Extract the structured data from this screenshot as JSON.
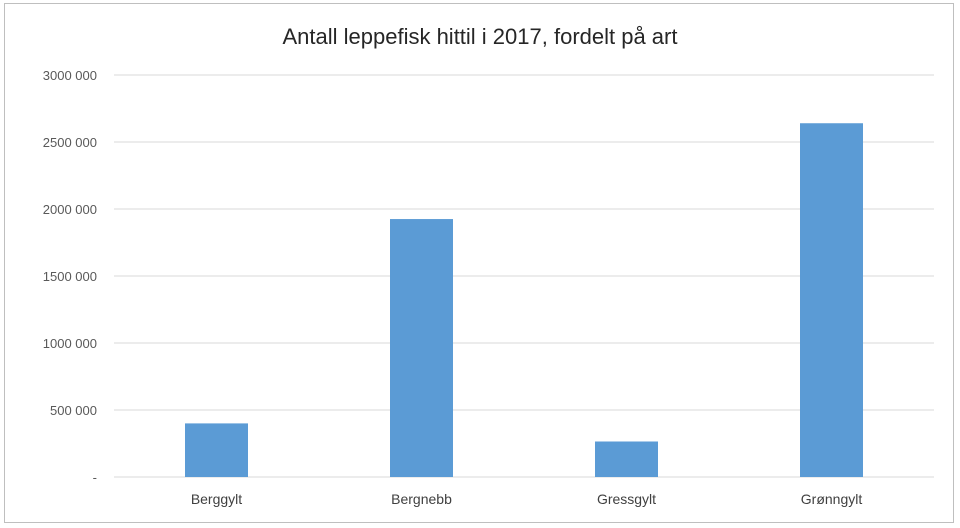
{
  "chart_data": {
    "type": "bar",
    "title": "Antall leppefisk hittil i 2017, fordelt på art",
    "categories": [
      "Berggylt",
      "Bergnebb",
      "Gressgylt",
      "Grønngylt"
    ],
    "values": [
      400000,
      1925000,
      265000,
      2640000
    ],
    "ylim": [
      0,
      3000000
    ],
    "yticks": [
      0,
      500000,
      1000000,
      1500000,
      2000000,
      2500000,
      3000000
    ],
    "ytick_labels": [
      "-",
      "500 000",
      "1000 000",
      "1500 000",
      "2000 000",
      "2500 000",
      "3000 000"
    ],
    "grid": true,
    "bar_color": "#5b9bd5",
    "xlabel": "",
    "ylabel": ""
  }
}
